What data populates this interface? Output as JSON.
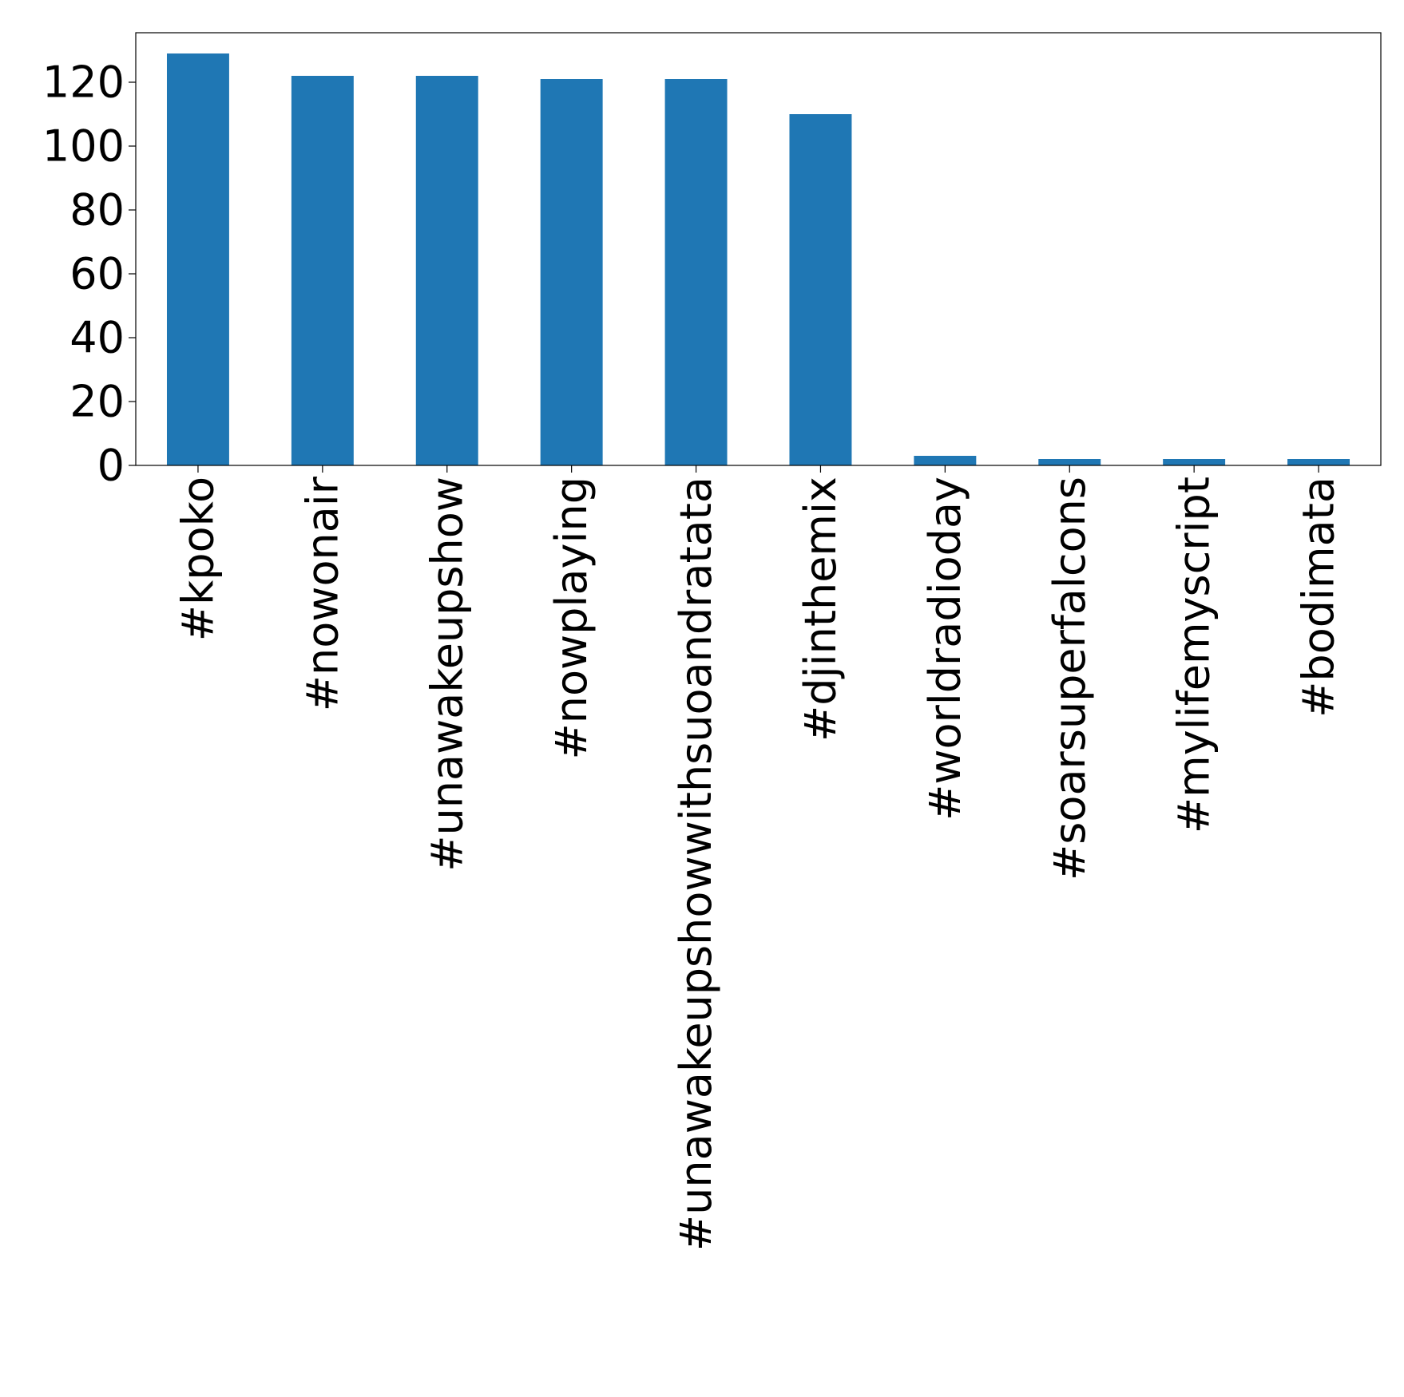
{
  "chart_data": {
    "type": "bar",
    "title": "",
    "xlabel": "",
    "ylabel": "",
    "categories": [
      "#kpoko",
      "#nowonair",
      "#unawakeupshow",
      "#nowplaying",
      "#unawakeupshowwithsuoandratata",
      "#djinthemix",
      "#worldradioday",
      "#soarsuperfalcons",
      "#mylifemyscript",
      "#bodimata"
    ],
    "values": [
      129,
      122,
      122,
      121,
      121,
      110,
      3,
      2,
      2,
      2
    ],
    "ylim": [
      0,
      135.5
    ],
    "yticks": [
      0,
      20,
      40,
      60,
      80,
      100,
      120
    ],
    "grid": false,
    "legend": "none",
    "bar_color": "#1f77b4"
  }
}
